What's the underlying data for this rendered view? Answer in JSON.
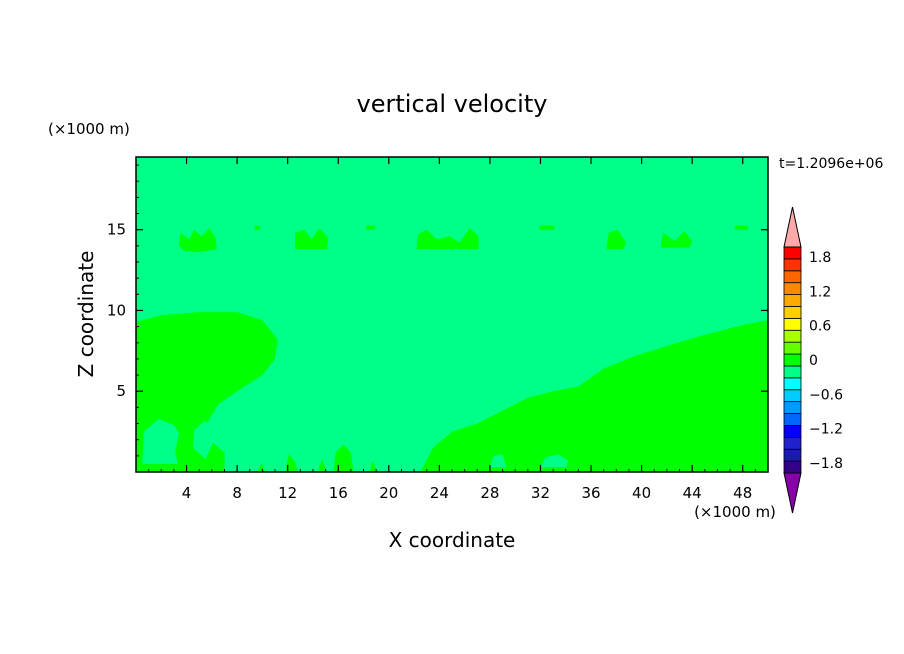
{
  "chart_data": {
    "type": "heatmap",
    "title": "vertical velocity",
    "xlabel": "X coordinate",
    "ylabel": "Z coordinate",
    "x_unit": "(×1000 m)",
    "y_unit": "(×1000 m)",
    "time_label": "t=1.2096e+06",
    "xlim": [
      0,
      50
    ],
    "ylim": [
      0,
      19.5
    ],
    "x_ticks": [
      4,
      8,
      12,
      16,
      20,
      24,
      28,
      32,
      36,
      40,
      44,
      48
    ],
    "y_ticks": [
      5,
      10,
      15
    ],
    "background_value_color": "#00ff88",
    "colorbar": {
      "colors": [
        "#8800aa",
        "#330088",
        "#1a1ab0",
        "#2222cc",
        "#0000ff",
        "#0066ff",
        "#0099ff",
        "#00ccff",
        "#00ffff",
        "#00ff88",
        "#00ff00",
        "#66ff00",
        "#aaff00",
        "#ffff00",
        "#ffd000",
        "#ffaa00",
        "#ff8800",
        "#ff6600",
        "#ff3300",
        "#ff0000",
        "#ffaaaa"
      ],
      "labels": [
        "1.8",
        "1.2",
        "0.6",
        "0",
        "−0.6",
        "−1.2",
        "−1.8"
      ]
    },
    "regions": [
      {
        "name": "upward-zone-left",
        "color": "#00ff00",
        "points": [
          [
            0,
            9.3
          ],
          [
            2,
            9.7
          ],
          [
            5,
            9.9
          ],
          [
            8,
            9.9
          ],
          [
            10,
            9.4
          ],
          [
            11.2,
            8.2
          ],
          [
            11,
            7
          ],
          [
            10,
            6
          ],
          [
            8,
            5
          ],
          [
            6.5,
            4.2
          ],
          [
            5.6,
            3
          ],
          [
            5.8,
            2
          ],
          [
            7,
            1.2
          ],
          [
            7,
            0
          ],
          [
            0,
            0
          ]
        ]
      },
      {
        "name": "upward-zone-right",
        "color": "#00ff00",
        "points": [
          [
            22.5,
            0
          ],
          [
            23.5,
            1.5
          ],
          [
            25,
            2.5
          ],
          [
            27,
            3
          ],
          [
            29,
            3.8
          ],
          [
            31,
            4.6
          ],
          [
            33,
            5
          ],
          [
            35,
            5.3
          ],
          [
            37,
            6.4
          ],
          [
            39.5,
            7.2
          ],
          [
            42,
            7.8
          ],
          [
            45,
            8.5
          ],
          [
            48,
            9.1
          ],
          [
            50,
            9.4
          ],
          [
            50,
            0
          ]
        ]
      },
      {
        "name": "pocket-left-1",
        "color": "#00ff88",
        "points": [
          [
            0.5,
            0.5
          ],
          [
            0.6,
            2.5
          ],
          [
            1.8,
            3.3
          ],
          [
            3,
            2.9
          ],
          [
            3.4,
            2.4
          ],
          [
            3.1,
            1.3
          ],
          [
            3.3,
            0.5
          ]
        ]
      },
      {
        "name": "pocket-left-2",
        "color": "#00ff88",
        "points": [
          [
            5.5,
            3.2
          ],
          [
            4.6,
            2.6
          ],
          [
            4.5,
            1.5
          ],
          [
            5.5,
            0.8
          ],
          [
            6.2,
            2
          ]
        ]
      },
      {
        "name": "pocket-right-1",
        "color": "#00ff88",
        "points": [
          [
            32,
            0.3
          ],
          [
            32.4,
            0.9
          ],
          [
            33.4,
            1.1
          ],
          [
            34.2,
            0.7
          ],
          [
            34,
            0.3
          ]
        ]
      },
      {
        "name": "pocket-right-2",
        "color": "#00ff88",
        "points": [
          [
            28,
            0.3
          ],
          [
            28.3,
            1
          ],
          [
            29,
            1.1
          ],
          [
            29.3,
            0.3
          ]
        ]
      },
      {
        "name": "top-blob-1",
        "color": "#00ff00",
        "points": [
          [
            3.4,
            14
          ],
          [
            3.5,
            14.8
          ],
          [
            4.2,
            14.4
          ],
          [
            4.6,
            15
          ],
          [
            5.2,
            14.6
          ],
          [
            5.8,
            15.1
          ],
          [
            6.3,
            14.5
          ],
          [
            6.4,
            13.8
          ],
          [
            5,
            13.6
          ],
          [
            3.8,
            13.7
          ]
        ]
      },
      {
        "name": "top-blob-2",
        "color": "#00ff00",
        "points": [
          [
            12.6,
            13.8
          ],
          [
            12.6,
            14.8
          ],
          [
            13.3,
            15
          ],
          [
            13.9,
            14.4
          ],
          [
            14.5,
            15.1
          ],
          [
            15.2,
            14.5
          ],
          [
            15.1,
            13.8
          ]
        ]
      },
      {
        "name": "top-blob-3",
        "color": "#00ff00",
        "points": [
          [
            22.2,
            13.8
          ],
          [
            22.3,
            14.7
          ],
          [
            23,
            15
          ],
          [
            23.8,
            14.4
          ],
          [
            24.8,
            14.6
          ],
          [
            25.6,
            14.2
          ],
          [
            26.4,
            15.1
          ],
          [
            27.1,
            14.6
          ],
          [
            27.1,
            13.8
          ]
        ]
      },
      {
        "name": "top-blob-4",
        "color": "#00ff00",
        "points": [
          [
            37.2,
            13.8
          ],
          [
            37.4,
            14.8
          ],
          [
            38.1,
            15
          ],
          [
            38.8,
            14.2
          ],
          [
            38.5,
            13.8
          ]
        ]
      },
      {
        "name": "top-blob-5",
        "color": "#00ff00",
        "points": [
          [
            41.5,
            13.9
          ],
          [
            41.7,
            14.8
          ],
          [
            42.6,
            14.3
          ],
          [
            43.4,
            14.9
          ],
          [
            44,
            14.3
          ],
          [
            43.8,
            13.9
          ]
        ]
      },
      {
        "name": "top-dash-1",
        "color": "#00ff00",
        "points": [
          [
            9.4,
            15
          ],
          [
            9.8,
            15
          ],
          [
            9.8,
            15.25
          ],
          [
            9.4,
            15.25
          ]
        ]
      },
      {
        "name": "top-dash-2",
        "color": "#00ff00",
        "points": [
          [
            18.2,
            15
          ],
          [
            18.9,
            15
          ],
          [
            18.9,
            15.25
          ],
          [
            18.2,
            15.25
          ]
        ]
      },
      {
        "name": "top-dash-3",
        "color": "#00ff00",
        "points": [
          [
            31.9,
            15
          ],
          [
            33.1,
            15
          ],
          [
            33.1,
            15.25
          ],
          [
            31.9,
            15.25
          ]
        ]
      },
      {
        "name": "top-dash-4",
        "color": "#00ff00",
        "points": [
          [
            47.4,
            15
          ],
          [
            48.4,
            15
          ],
          [
            48.4,
            15.25
          ],
          [
            47.4,
            15.25
          ]
        ]
      },
      {
        "name": "bottom-speck-1",
        "color": "#00ff00",
        "points": [
          [
            11.8,
            0
          ],
          [
            12.1,
            1.1
          ],
          [
            12.6,
            0.6
          ],
          [
            12.8,
            0
          ]
        ]
      },
      {
        "name": "bottom-speck-2",
        "color": "#00ff00",
        "points": [
          [
            15.6,
            0
          ],
          [
            15.8,
            1.2
          ],
          [
            16.4,
            1.7
          ],
          [
            17,
            1.2
          ],
          [
            17.2,
            0
          ]
        ]
      },
      {
        "name": "bottom-speck-3",
        "color": "#00ff00",
        "points": [
          [
            18.5,
            0
          ],
          [
            18.7,
            0.7
          ],
          [
            19.1,
            0
          ]
        ]
      },
      {
        "name": "bottom-speck-4",
        "color": "#00ff00",
        "points": [
          [
            14.4,
            0
          ],
          [
            14.7,
            0.8
          ],
          [
            15.1,
            0
          ]
        ]
      },
      {
        "name": "bottom-speck-5",
        "color": "#00ff00",
        "points": [
          [
            9.6,
            0
          ],
          [
            9.9,
            0.5
          ],
          [
            10.3,
            0
          ]
        ]
      }
    ]
  }
}
